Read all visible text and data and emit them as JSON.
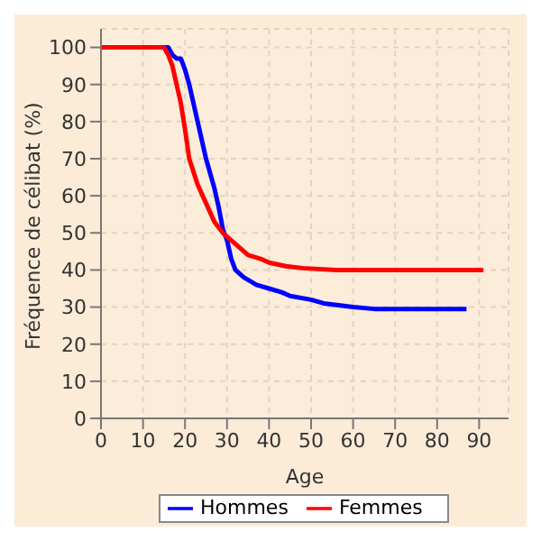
{
  "chart_data": {
    "type": "line",
    "xlabel": "Age",
    "ylabel": "Fréquence de célibat (%)",
    "xlim": [
      0,
      97
    ],
    "ylim": [
      0,
      105
    ],
    "xticks": [
      0,
      10,
      20,
      30,
      40,
      50,
      60,
      70,
      80,
      90
    ],
    "yticks": [
      0,
      10,
      20,
      30,
      40,
      50,
      60,
      70,
      80,
      90,
      100
    ],
    "grid": true,
    "legend": "bottom",
    "marker": "none",
    "line_style": "solid",
    "series": [
      {
        "name": "Hommes",
        "color": "#0000ff",
        "x": [
          0,
          16,
          17,
          18,
          19,
          20,
          21,
          23,
          25,
          27,
          28,
          29,
          30,
          31,
          32,
          34,
          37,
          40,
          43,
          45,
          50,
          53,
          60,
          65,
          87
        ],
        "values": [
          100,
          100,
          98,
          97,
          97,
          94,
          90,
          80,
          70,
          62,
          57,
          51,
          48,
          43,
          40,
          38,
          36,
          35,
          34,
          33,
          32,
          31,
          30,
          29.5,
          29.5
        ]
      },
      {
        "name": "Femmes",
        "color": "#ff0000",
        "x": [
          0,
          15,
          16,
          17,
          18,
          19,
          20,
          21,
          23,
          25,
          27,
          29,
          31,
          33,
          35,
          38,
          40,
          44,
          48,
          56,
          91
        ],
        "values": [
          100,
          100,
          98,
          95,
          90,
          85,
          78,
          70,
          63,
          58,
          53,
          50,
          48,
          46,
          44,
          43,
          42,
          41,
          40.5,
          40,
          40
        ]
      }
    ]
  }
}
